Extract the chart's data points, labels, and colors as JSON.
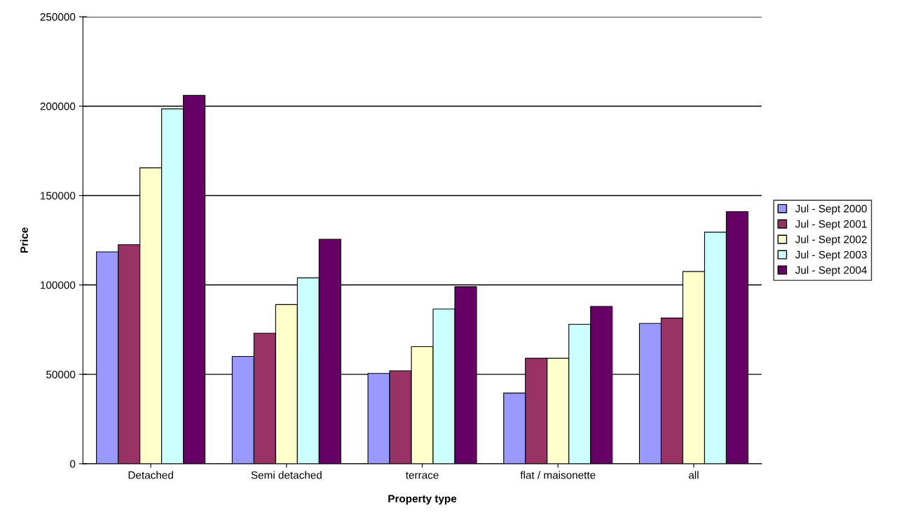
{
  "chart_data": {
    "type": "bar",
    "xlabel": "Property type",
    "ylabel": "Price",
    "categories": [
      "Detached",
      "Semi detached",
      "terrace",
      "flat / maisonette",
      "all"
    ],
    "series": [
      {
        "name": "Jul - Sept 2000",
        "color": "#9999ff",
        "values": [
          118500,
          60000,
          50500,
          39500,
          78500
        ]
      },
      {
        "name": "Jul - Sept 2001",
        "color": "#993366",
        "values": [
          122500,
          73000,
          52000,
          59000,
          81500
        ]
      },
      {
        "name": "Jul - Sept 2002",
        "color": "#ffffcc",
        "values": [
          165500,
          89000,
          65500,
          59000,
          107500
        ]
      },
      {
        "name": "Jul - Sept 2003",
        "color": "#ccffff",
        "values": [
          198500,
          104000,
          86500,
          78000,
          129500
        ]
      },
      {
        "name": "Jul - Sept 2004",
        "color": "#660066",
        "values": [
          206000,
          125500,
          99000,
          88000,
          141000
        ]
      }
    ],
    "ylim": [
      0,
      250000
    ],
    "yticks": [
      0,
      50000,
      100000,
      150000,
      200000,
      250000
    ],
    "grid": "y",
    "legend": "right"
  }
}
